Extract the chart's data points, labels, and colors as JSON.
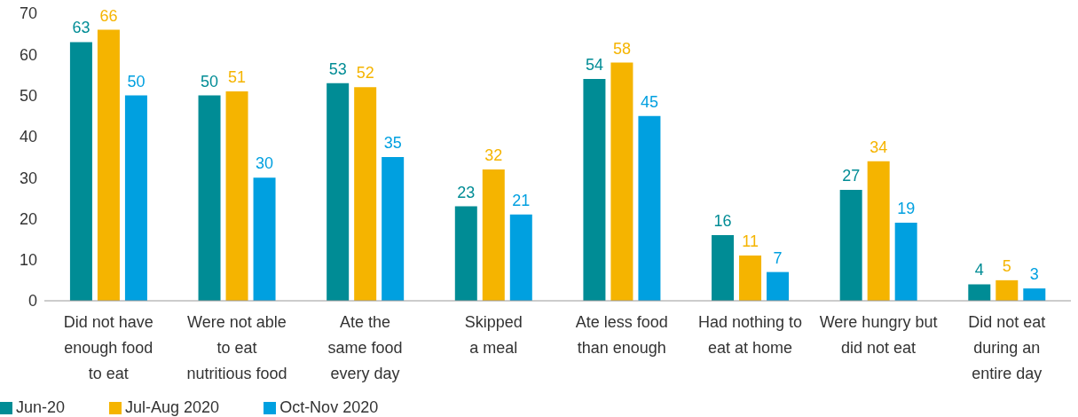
{
  "chart_data": {
    "type": "bar",
    "categories": [
      "Did not have\nenough food\nto eat",
      "Were not able\nto eat\nnutritious food",
      "Ate the\nsame food\nevery day",
      "Skipped\na meal",
      "Ate less food\nthan enough",
      "Had nothing to\neat at home",
      "Were hungry but\ndid not eat",
      "Did not eat\nduring an\nentire day"
    ],
    "series": [
      {
        "name": "Jun-20",
        "color": "#008c95",
        "values": [
          63,
          50,
          53,
          23,
          54,
          16,
          27,
          4
        ]
      },
      {
        "name": "Jul-Aug 2020",
        "color": "#f5b400",
        "values": [
          66,
          51,
          52,
          32,
          58,
          11,
          34,
          5
        ]
      },
      {
        "name": "Oct-Nov 2020",
        "color": "#00a0e0",
        "values": [
          50,
          30,
          35,
          21,
          45,
          7,
          19,
          3
        ]
      }
    ],
    "ylim": [
      0,
      70
    ],
    "yticks": [
      0,
      10,
      20,
      30,
      40,
      50,
      60,
      70
    ],
    "data_labels": true,
    "legend": "bottom left",
    "grid": false
  }
}
